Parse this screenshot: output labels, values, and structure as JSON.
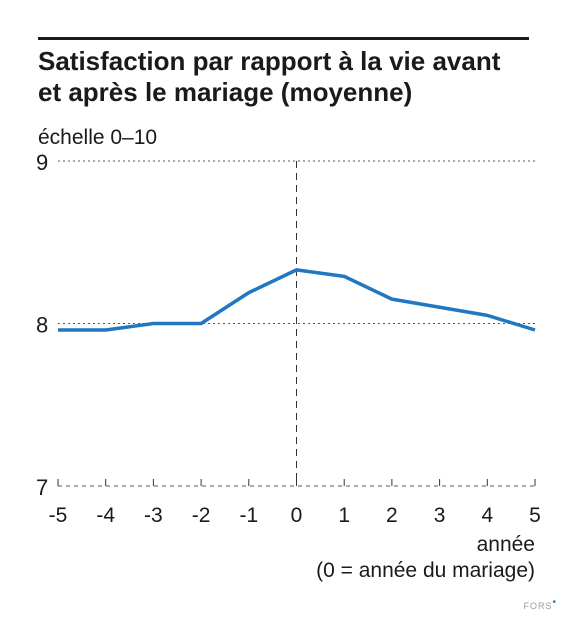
{
  "chart_data": {
    "type": "line",
    "title_lines": [
      "Satisfaction par rapport à la vie avant",
      "et après le mariage (moyenne)"
    ],
    "ylabel": "échelle 0–10",
    "xlabel": "année",
    "xnote": "(0 = année du mariage)",
    "x": [
      -5,
      -4,
      -3,
      -2,
      -1,
      0,
      1,
      2,
      3,
      4,
      5
    ],
    "y_ticks": [
      7,
      8,
      9
    ],
    "ylim": [
      7,
      9
    ],
    "xlim": [
      -5,
      5
    ],
    "grid": "dotted horizontal at 8 and 9",
    "reference_line_x": 0,
    "series": [
      {
        "values": [
          7.96,
          7.96,
          8.0,
          8.0,
          8.19,
          8.33,
          8.29,
          8.15,
          8.1,
          8.05,
          7.96
        ]
      }
    ],
    "line_color": "#1f78c1",
    "brand": "FORS"
  }
}
